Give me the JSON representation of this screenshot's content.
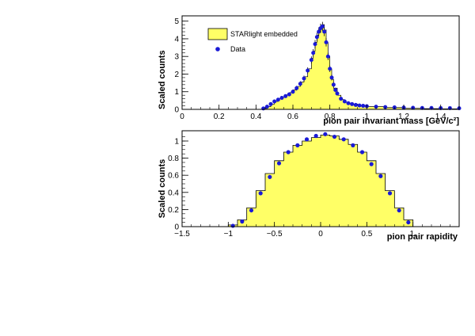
{
  "colors": {
    "mc_fill": "#ffff66",
    "data_marker": "#1a1ad6",
    "frame": "#000000"
  },
  "legend": {
    "mc_label": "STARlight embedded",
    "data_label": "Data"
  },
  "chart_data": [
    {
      "type": "bar",
      "xlabel": "pion pair invariant mass [GeV/c²]",
      "ylabel": "Scaled counts",
      "xlim": [
        0,
        1.5
      ],
      "ylim": [
        0,
        5.3
      ],
      "xticks": [
        "0",
        "0.2",
        "0.4",
        "0.6",
        "0.8",
        "1",
        "1.2",
        "1.4"
      ],
      "yticks": [
        "0",
        "1",
        "2",
        "3",
        "4",
        "5"
      ],
      "legend_position": "top-left",
      "series": [
        {
          "name": "STARlight embedded",
          "kind": "histogram",
          "x": [
            0.42,
            0.44,
            0.46,
            0.48,
            0.5,
            0.52,
            0.54,
            0.56,
            0.58,
            0.6,
            0.62,
            0.64,
            0.66,
            0.68,
            0.7,
            0.71,
            0.72,
            0.73,
            0.74,
            0.75,
            0.76,
            0.77,
            0.78,
            0.79,
            0.8,
            0.81,
            0.82,
            0.84,
            0.86,
            0.88,
            0.9,
            0.95,
            1.0,
            1.1,
            1.2,
            1.3,
            1.4
          ],
          "y": [
            0.0,
            0.05,
            0.15,
            0.3,
            0.45,
            0.6,
            0.7,
            0.82,
            0.95,
            1.1,
            1.3,
            1.55,
            1.85,
            2.3,
            2.9,
            3.3,
            3.8,
            4.2,
            4.5,
            4.7,
            4.8,
            4.5,
            3.8,
            3.0,
            2.3,
            1.7,
            1.2,
            0.8,
            0.55,
            0.4,
            0.3,
            0.22,
            0.15,
            0.1,
            0.06,
            0.04,
            0.03
          ]
        },
        {
          "name": "Data",
          "kind": "points",
          "x": [
            0.44,
            0.46,
            0.48,
            0.5,
            0.52,
            0.54,
            0.56,
            0.58,
            0.6,
            0.62,
            0.64,
            0.66,
            0.68,
            0.7,
            0.71,
            0.72,
            0.73,
            0.74,
            0.75,
            0.76,
            0.77,
            0.78,
            0.79,
            0.8,
            0.81,
            0.82,
            0.83,
            0.84,
            0.86,
            0.88,
            0.9,
            0.92,
            0.94,
            0.96,
            0.98,
            1.0,
            1.05,
            1.1,
            1.15,
            1.2,
            1.25,
            1.3,
            1.35,
            1.4,
            1.45,
            1.5
          ],
          "y": [
            0.05,
            0.15,
            0.3,
            0.45,
            0.55,
            0.65,
            0.75,
            0.85,
            1.0,
            1.2,
            1.45,
            1.75,
            2.2,
            2.8,
            3.2,
            3.7,
            4.1,
            4.4,
            4.6,
            4.7,
            4.4,
            3.8,
            3.0,
            2.3,
            1.8,
            1.4,
            1.1,
            0.9,
            0.6,
            0.45,
            0.35,
            0.3,
            0.25,
            0.22,
            0.2,
            0.18,
            0.15,
            0.13,
            0.11,
            0.1,
            0.09,
            0.08,
            0.08,
            0.07,
            0.07,
            0.06
          ]
        }
      ]
    },
    {
      "type": "bar",
      "xlabel": "pion pair rapidity",
      "ylabel": "Scaled counts",
      "xlim": [
        -1.5,
        1.5
      ],
      "ylim": [
        0,
        1.12
      ],
      "xticks": [
        "−1.5",
        "−1",
        "−0.5",
        "0",
        "0.5",
        "1."
      ],
      "yticks": [
        "0",
        "0.2",
        "0.4",
        "0.6",
        "0.8",
        "1"
      ],
      "series": [
        {
          "name": "STARlight embedded",
          "kind": "histogram",
          "bin_edges": [
            -1.0,
            -0.9,
            -0.8,
            -0.7,
            -0.6,
            -0.5,
            -0.4,
            -0.3,
            -0.2,
            -0.1,
            0.0,
            0.1,
            0.2,
            0.3,
            0.4,
            0.5,
            0.6,
            0.7,
            0.8,
            0.9,
            1.0
          ],
          "y": [
            0.02,
            0.08,
            0.22,
            0.42,
            0.62,
            0.77,
            0.87,
            0.95,
            1.0,
            1.04,
            1.07,
            1.06,
            1.02,
            0.96,
            0.87,
            0.77,
            0.62,
            0.42,
            0.22,
            0.08
          ]
        },
        {
          "name": "Data",
          "kind": "points",
          "x": [
            -0.95,
            -0.85,
            -0.75,
            -0.65,
            -0.55,
            -0.45,
            -0.35,
            -0.25,
            -0.15,
            -0.05,
            0.05,
            0.15,
            0.25,
            0.35,
            0.45,
            0.55,
            0.65,
            0.75,
            0.85,
            0.95
          ],
          "y": [
            0.01,
            0.06,
            0.19,
            0.39,
            0.58,
            0.74,
            0.87,
            0.95,
            1.02,
            1.06,
            1.08,
            1.05,
            1.02,
            0.95,
            0.87,
            0.73,
            0.59,
            0.39,
            0.19,
            0.05
          ]
        }
      ]
    }
  ]
}
